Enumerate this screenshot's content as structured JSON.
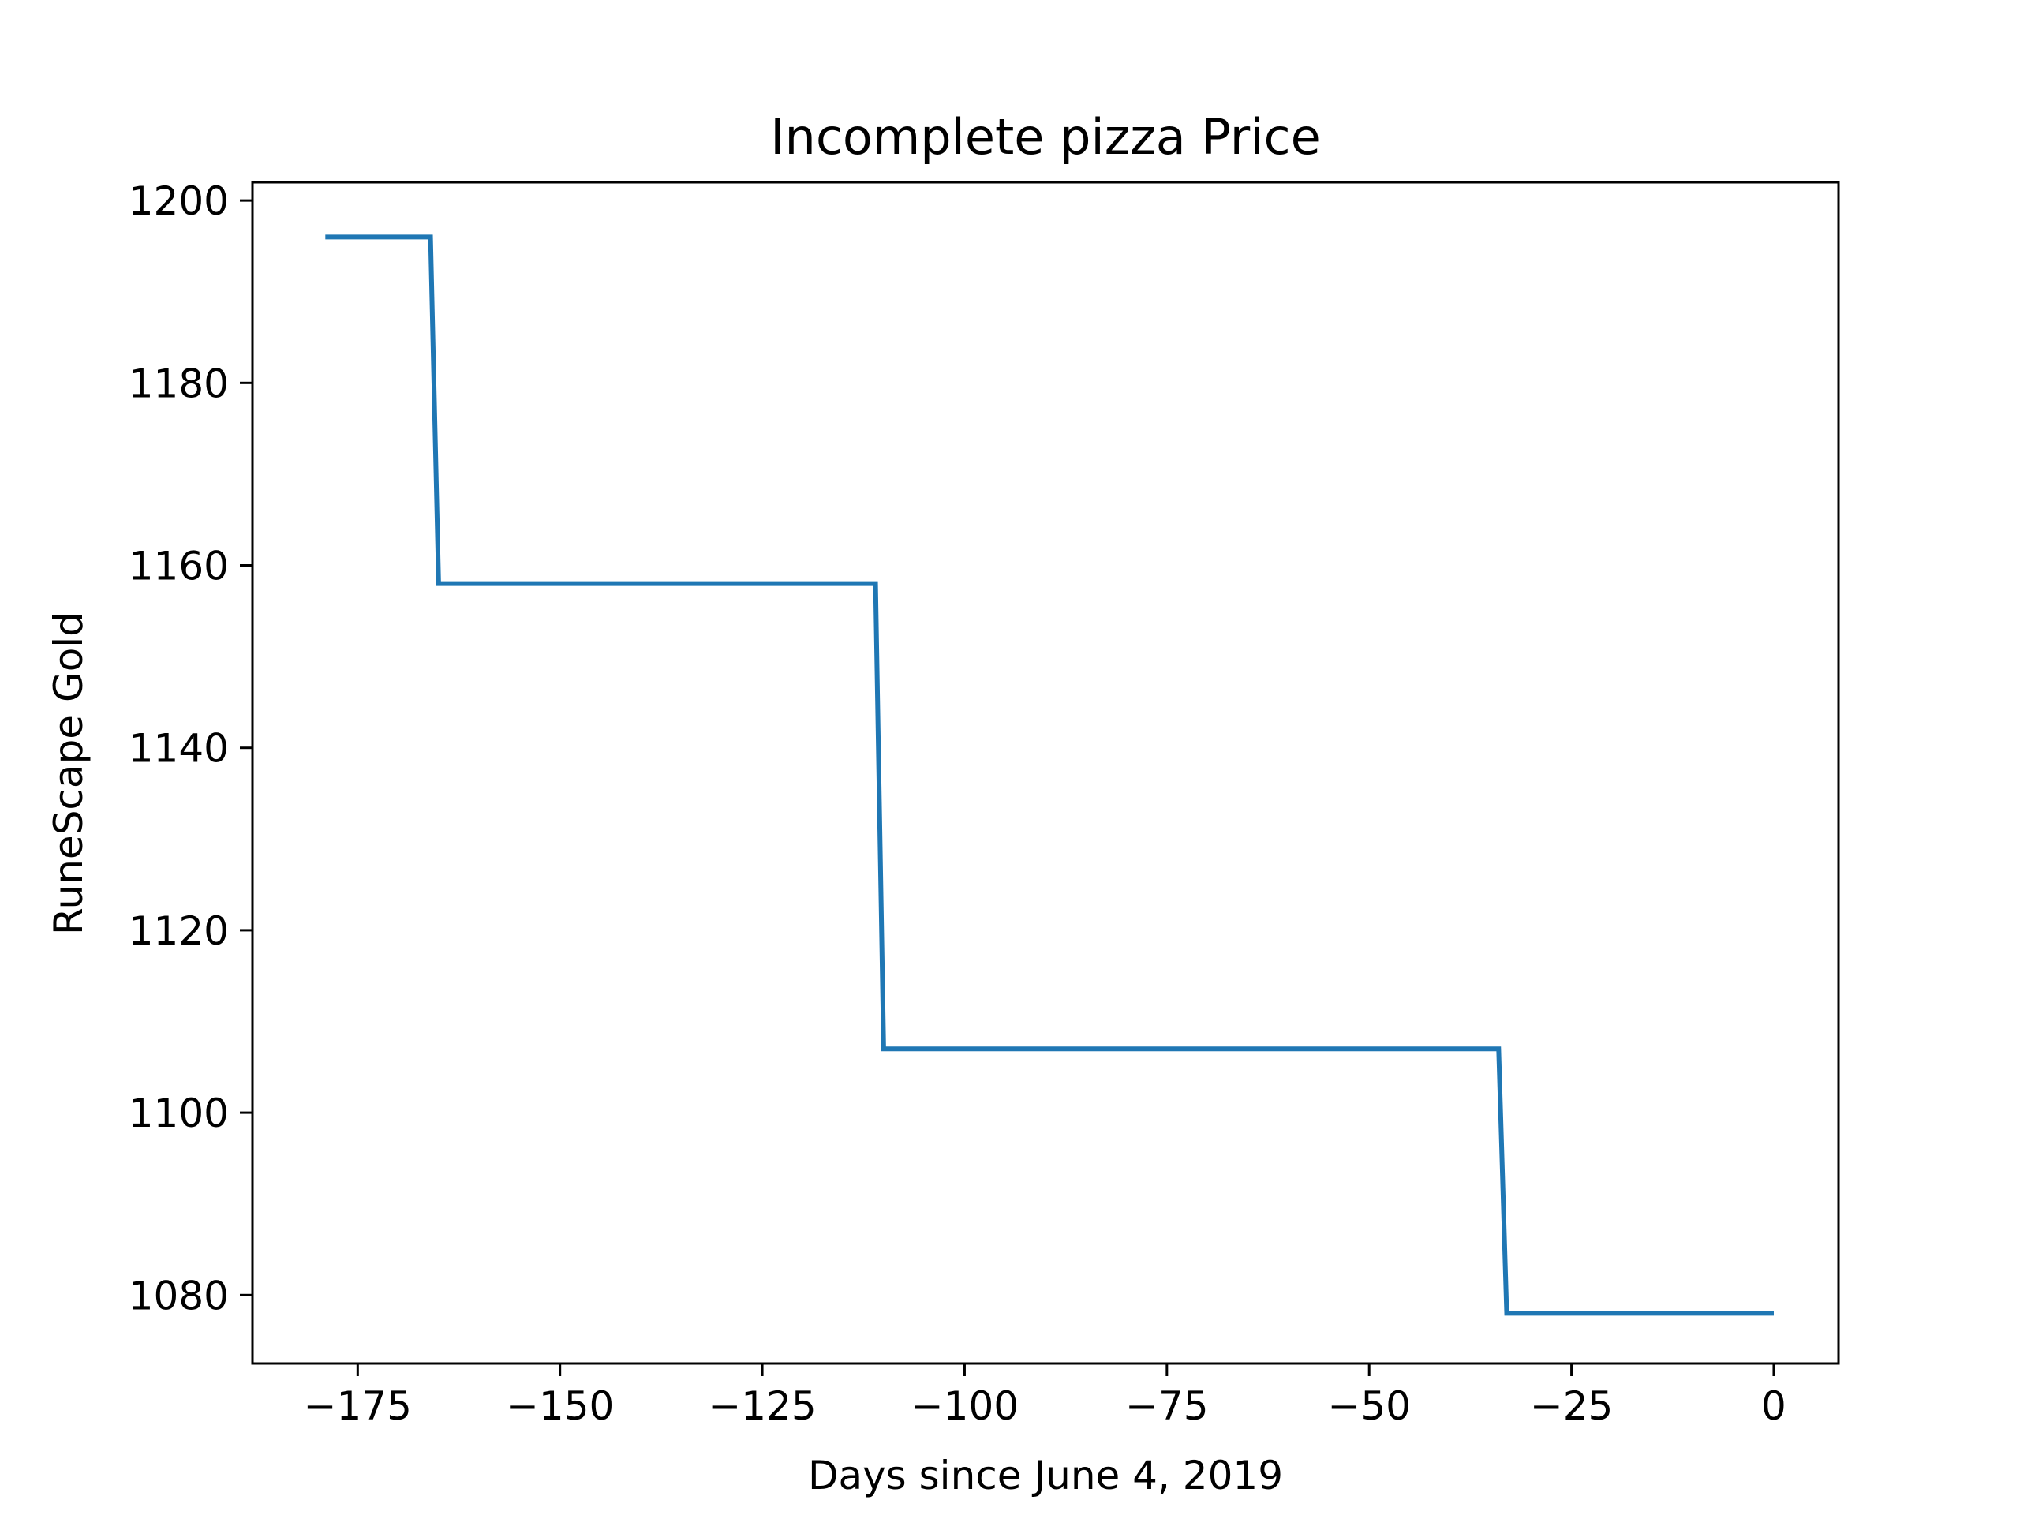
{
  "chart_data": {
    "type": "line",
    "title": "Incomplete pizza Price",
    "xlabel": "Days since June 4, 2019",
    "ylabel": "RuneScape Gold",
    "xlim": [
      -188,
      8
    ],
    "ylim": [
      1072.5,
      1202
    ],
    "x_ticks": [
      -175,
      -150,
      -125,
      -100,
      -75,
      -50,
      -25,
      0
    ],
    "x_tick_labels": [
      "−175",
      "−150",
      "−125",
      "−100",
      "−75",
      "−50",
      "−25",
      "0"
    ],
    "y_ticks": [
      1080,
      1100,
      1120,
      1140,
      1160,
      1180,
      1200
    ],
    "y_tick_labels": [
      "1080",
      "1100",
      "1120",
      "1140",
      "1160",
      "1180",
      "1200"
    ],
    "grid": false,
    "series": [
      {
        "color": "#1f77b4",
        "x": [
          -179,
          -166,
          -165,
          -111,
          -110,
          -34,
          -33,
          0
        ],
        "y": [
          1196,
          1196,
          1158,
          1158,
          1107,
          1107,
          1078,
          1078
        ]
      }
    ]
  }
}
